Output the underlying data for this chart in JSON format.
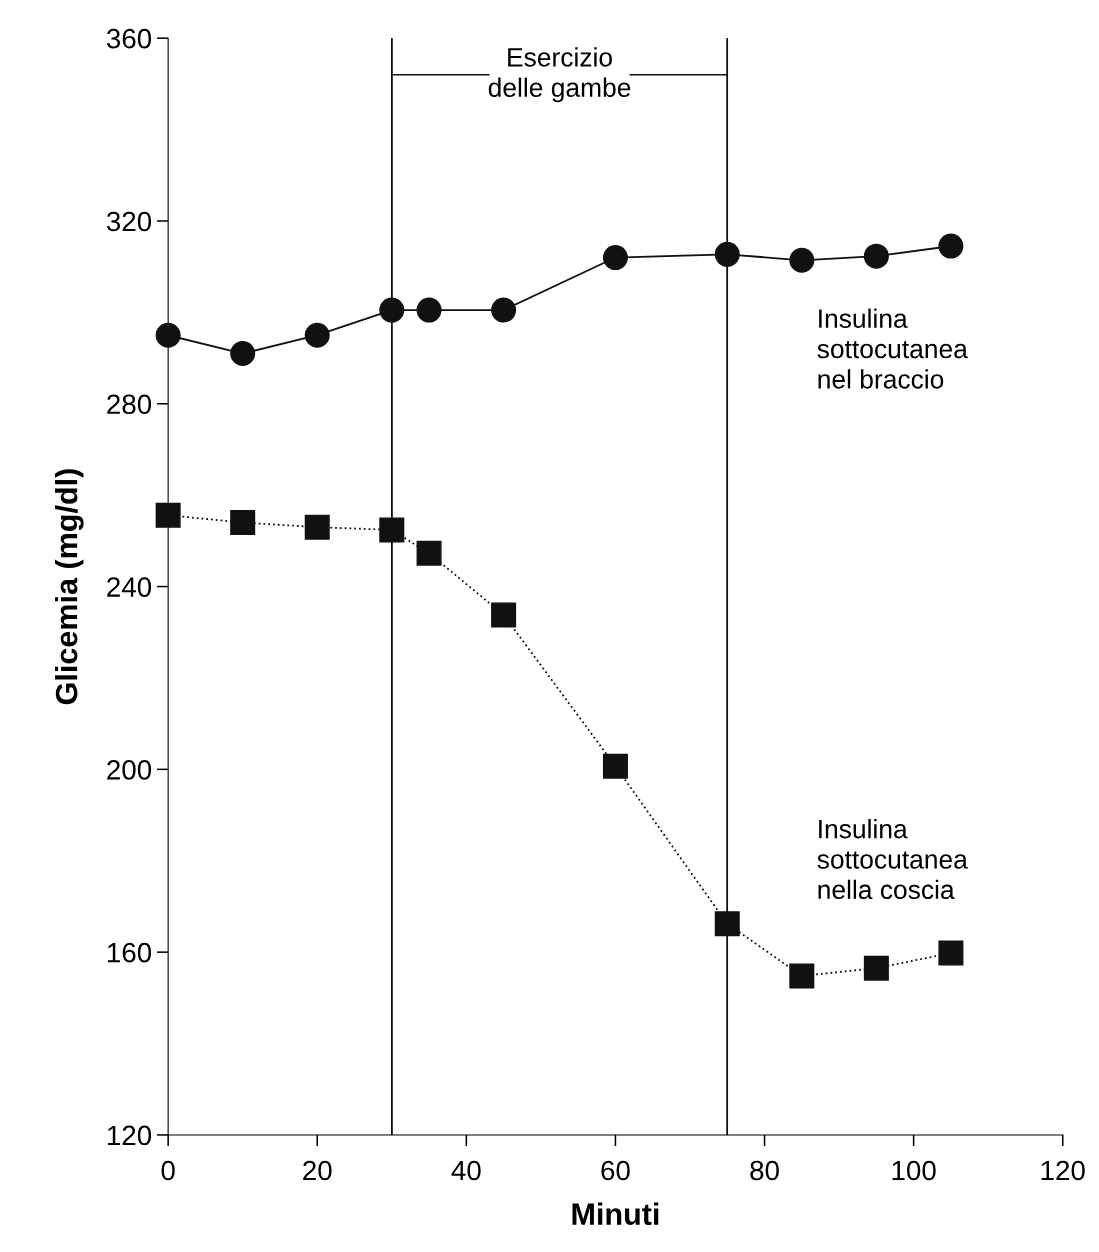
{
  "chart_data": {
    "type": "line",
    "xlabel": "Minuti",
    "ylabel": "Glicemia (mg/dl)",
    "xlim": [
      0,
      120
    ],
    "ylim": [
      120,
      360
    ],
    "xticks": [
      0,
      20,
      40,
      60,
      80,
      100,
      120
    ],
    "yticks": [
      120,
      160,
      200,
      240,
      280,
      320,
      360
    ],
    "grid": false,
    "legend": false,
    "series": [
      {
        "name": "Insulina\nsottocutanea\nnel braccio",
        "color": "#111111",
        "marker": "circle",
        "line_style": "solid",
        "x": [
          0,
          10,
          20,
          30,
          35,
          45,
          60,
          75,
          85,
          95,
          105
        ],
        "values": [
          295,
          291,
          295,
          300.5,
          300.5,
          300.5,
          312,
          312.7,
          311.4,
          312.3,
          314.5
        ]
      },
      {
        "name": "Insulina\nsottocutanea\nnella coscia",
        "color": "#111111",
        "marker": "square",
        "line_style": "dotted",
        "x": [
          0,
          10,
          20,
          30,
          35,
          45,
          60,
          75,
          85,
          95,
          105
        ],
        "values": [
          255.6,
          254,
          253,
          252.4,
          247.3,
          233.8,
          200.7,
          166.2,
          154.8,
          156.5,
          159.8
        ]
      }
    ],
    "ref_lines": [
      {
        "axis": "x",
        "value": 30,
        "color": "#111111",
        "line_style": "solid"
      },
      {
        "axis": "x",
        "value": 75,
        "color": "#111111",
        "line_style": "solid"
      }
    ],
    "annotations": [
      {
        "text": "Esercizio\ndelle gambe",
        "x": 75,
        "y": 352
      }
    ]
  }
}
